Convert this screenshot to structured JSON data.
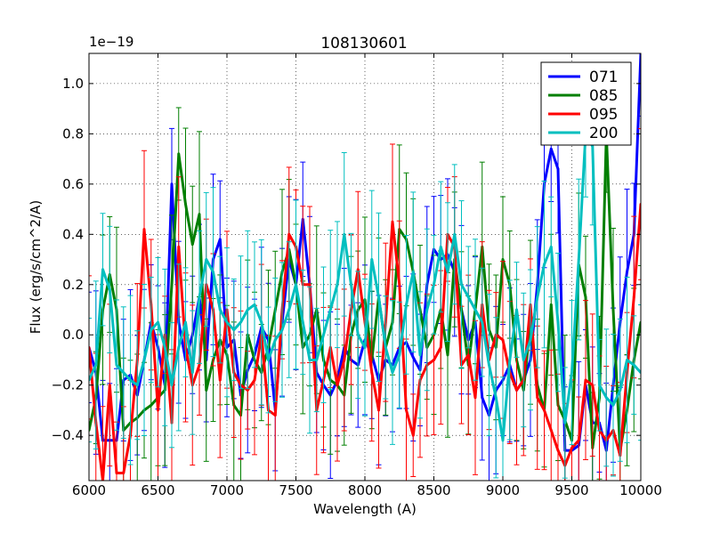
{
  "chart_data": {
    "type": "line",
    "title": "108130601",
    "xlabel": "Wavelength (A)",
    "ylabel": "Flux (erg/s/cm^2/A)",
    "offset_label": "1e−19",
    "xlim": [
      6000,
      10000
    ],
    "ylim": [
      -0.58,
      1.12
    ],
    "xticks": [
      6000,
      6500,
      7000,
      7500,
      8000,
      8500,
      9000,
      9500,
      10000
    ],
    "xtick_labels": [
      "6000",
      "6500",
      "7000",
      "7500",
      "8000",
      "8500",
      "9000",
      "9500",
      "10000"
    ],
    "yticks": [
      -0.4,
      -0.2,
      0.0,
      0.2,
      0.4,
      0.6,
      0.8,
      1.0
    ],
    "ytick_labels": [
      "−0.4",
      "−0.2",
      "0.0",
      "0.2",
      "0.4",
      "0.6",
      "0.8",
      "1.0"
    ],
    "grid": true,
    "legend_position": "top-right",
    "x": [
      6000,
      6050,
      6100,
      6150,
      6200,
      6250,
      6300,
      6350,
      6400,
      6450,
      6500,
      6550,
      6600,
      6650,
      6700,
      6750,
      6800,
      6850,
      6900,
      6950,
      7000,
      7050,
      7100,
      7150,
      7200,
      7250,
      7300,
      7350,
      7400,
      7450,
      7500,
      7550,
      7600,
      7650,
      7700,
      7750,
      7800,
      7850,
      7900,
      7950,
      8000,
      8050,
      8100,
      8150,
      8200,
      8250,
      8300,
      8350,
      8400,
      8450,
      8500,
      8550,
      8600,
      8650,
      8700,
      8750,
      8800,
      8850,
      8900,
      8950,
      9000,
      9050,
      9100,
      9150,
      9200,
      9250,
      9300,
      9350,
      9400,
      9450,
      9500,
      9550,
      9600,
      9650,
      9700,
      9750,
      9800,
      9850,
      9900,
      9950,
      10000
    ],
    "series": [
      {
        "name": "071",
        "color": "#0000ff",
        "values": [
          -0.05,
          -0.15,
          -0.42,
          -0.42,
          -0.42,
          -0.18,
          -0.16,
          -0.24,
          -0.1,
          0.05,
          -0.05,
          -0.2,
          0.6,
          0.05,
          -0.1,
          0.0,
          0.15,
          -0.1,
          0.3,
          0.38,
          -0.05,
          -0.02,
          -0.24,
          -0.14,
          -0.08,
          0.03,
          -0.02,
          -0.3,
          0.05,
          0.3,
          0.2,
          0.46,
          0.2,
          -0.15,
          -0.2,
          -0.24,
          -0.18,
          -0.05,
          -0.1,
          -0.12,
          -0.02,
          -0.08,
          -0.18,
          -0.1,
          -0.12,
          -0.05,
          -0.03,
          -0.09,
          -0.14,
          0.2,
          0.34,
          0.3,
          0.32,
          0.25,
          0.1,
          -0.02,
          0.05,
          -0.25,
          -0.32,
          -0.22,
          -0.18,
          -0.12,
          -0.22,
          -0.18,
          -0.1,
          0.2,
          0.6,
          0.74,
          0.66,
          -0.46,
          -0.46,
          -0.44,
          -0.2,
          -0.35,
          -0.35,
          -0.46,
          -0.2,
          0.05,
          0.25,
          0.4,
          1.12
        ]
      },
      {
        "name": "085",
        "color": "#007f00",
        "values": [
          -0.38,
          -0.25,
          0.1,
          0.24,
          0.1,
          -0.38,
          -0.35,
          -0.33,
          -0.3,
          -0.28,
          -0.25,
          -0.22,
          0.2,
          0.72,
          0.52,
          0.36,
          0.48,
          -0.22,
          -0.1,
          -0.02,
          -0.08,
          -0.28,
          -0.32,
          0.0,
          -0.1,
          -0.15,
          -0.05,
          0.1,
          0.25,
          0.34,
          0.2,
          -0.05,
          0.0,
          0.1,
          -0.1,
          -0.18,
          -0.2,
          -0.24,
          0.0,
          0.1,
          0.14,
          -0.1,
          0.15,
          -0.05,
          0.05,
          0.42,
          0.38,
          0.25,
          0.1,
          -0.05,
          0.0,
          0.1,
          -0.08,
          0.3,
          0.1,
          -0.12,
          0.1,
          0.35,
          0.02,
          -0.05,
          0.3,
          0.2,
          -0.1,
          -0.22,
          0.05,
          -0.2,
          -0.3,
          0.12,
          -0.28,
          -0.34,
          -0.42,
          0.28,
          0.15,
          -0.45,
          -0.25,
          0.8,
          0.1,
          -0.46,
          -0.3,
          -0.1,
          0.05
        ]
      },
      {
        "name": "095",
        "color": "#ff0000",
        "values": [
          -0.05,
          -0.35,
          -0.58,
          -0.2,
          -0.55,
          -0.55,
          -0.4,
          -0.1,
          0.42,
          0.12,
          -0.3,
          0.0,
          -0.35,
          0.35,
          -0.05,
          -0.2,
          -0.12,
          0.2,
          0.1,
          -0.18,
          0.1,
          -0.15,
          -0.2,
          -0.22,
          -0.18,
          0.0,
          -0.3,
          -0.32,
          0.1,
          0.4,
          0.35,
          0.2,
          0.2,
          -0.3,
          -0.18,
          -0.05,
          -0.2,
          -0.1,
          0.1,
          0.26,
          0.05,
          -0.15,
          -0.3,
          0.05,
          0.45,
          0.2,
          -0.3,
          -0.4,
          -0.18,
          -0.12,
          -0.1,
          -0.05,
          0.4,
          0.35,
          -0.12,
          -0.08,
          -0.25,
          0.12,
          -0.1,
          0.0,
          -0.02,
          -0.15,
          -0.22,
          -0.18,
          0.12,
          -0.25,
          -0.3,
          -0.38,
          -0.46,
          -0.52,
          -0.45,
          -0.42,
          -0.18,
          -0.2,
          -0.38,
          -0.42,
          -0.38,
          -0.48,
          -0.15,
          0.15,
          0.52
        ]
      },
      {
        "name": "200",
        "color": "#00bfbf",
        "values": [
          -0.18,
          -0.12,
          0.26,
          0.18,
          -0.12,
          -0.15,
          -0.18,
          -0.2,
          -0.1,
          0.02,
          0.05,
          -0.05,
          -0.2,
          -0.05,
          0.05,
          -0.15,
          0.15,
          0.3,
          0.25,
          0.1,
          0.05,
          0.02,
          0.05,
          0.1,
          0.12,
          0.05,
          -0.1,
          -0.02,
          0.02,
          0.1,
          0.2,
          0.05,
          -0.1,
          -0.1,
          0.0,
          0.1,
          0.2,
          0.4,
          0.2,
          0.0,
          -0.05,
          0.3,
          0.15,
          -0.05,
          -0.15,
          -0.08,
          0.12,
          0.25,
          -0.08,
          0.1,
          0.2,
          0.35,
          0.25,
          0.4,
          0.2,
          0.15,
          0.1,
          0.05,
          -0.12,
          -0.25,
          -0.42,
          -0.1,
          0.1,
          -0.1,
          -0.02,
          0.15,
          0.28,
          0.35,
          0.05,
          -0.35,
          -0.15,
          0.3,
          0.8,
          0.75,
          -0.2,
          -0.25,
          -0.28,
          -0.22,
          -0.1,
          -0.12,
          -0.15
        ]
      }
    ]
  }
}
